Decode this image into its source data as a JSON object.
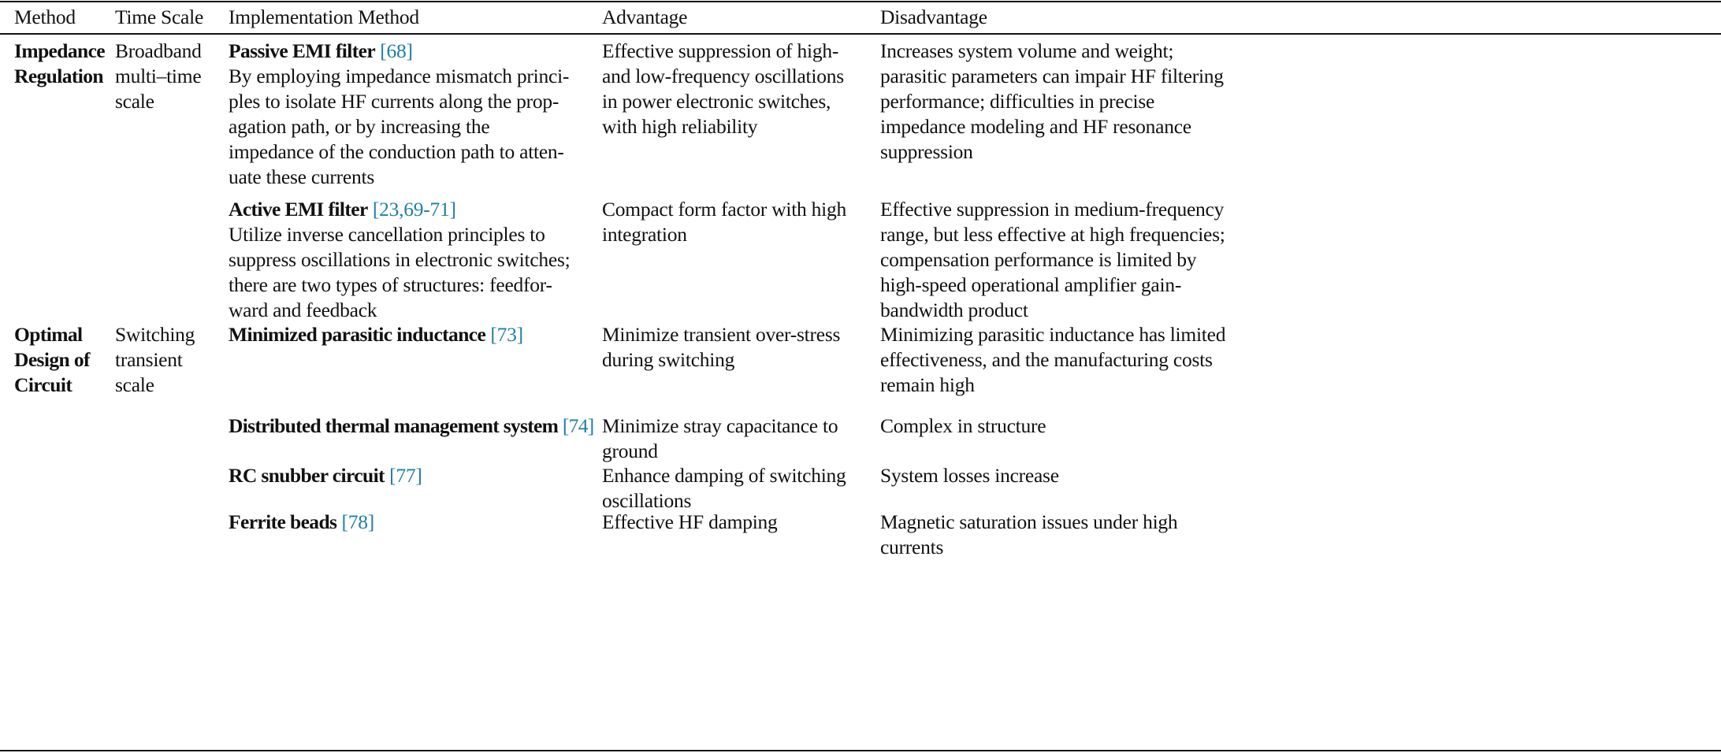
{
  "headers": [
    "Method",
    "Time Scale",
    "Implementation Method",
    "Advantage",
    "Disadvantage"
  ],
  "cite_color": "#1f7fa6",
  "rows": [
    {
      "method": [
        "Impedance",
        "Regulation"
      ],
      "time_scale": [
        "Broadband",
        "multi–time",
        "scale"
      ],
      "items": [
        {
          "title": "Passive EMI filter",
          "cite": "[68]",
          "desc": [
            "By employing impedance mismatch princi-",
            "ples to isolate HF currents along the prop-",
            "agation path, or by increasing the",
            "impedance of the conduction path to atten-",
            "uate these currents"
          ],
          "advantage": [
            "Effective suppression of high-",
            "and low-frequency oscillations",
            "in power electronic switches,",
            "with high reliability"
          ],
          "disadvantage": [
            "Increases system volume and weight;",
            "parasitic parameters can impair HF filtering",
            "performance; difficulties in precise",
            "impedance modeling and HF resonance",
            "suppression"
          ]
        },
        {
          "title": "Active EMI filter",
          "cite": "[23,69-71]",
          "desc": [
            "Utilize inverse cancellation principles to",
            "suppress oscillations in electronic switches;",
            "there are two types of structures: feedfor-",
            "ward and feedback"
          ],
          "advantage": [
            "Compact form factor with high",
            "integration"
          ],
          "disadvantage": [
            "Effective suppression in medium-frequency",
            "range, but less effective at high frequencies;",
            "compensation performance is limited by",
            "high-speed operational amplifier gain-",
            "bandwidth product"
          ]
        }
      ]
    },
    {
      "method": [
        "Optimal",
        "Design of",
        "Circuit"
      ],
      "time_scale": [
        "Switching",
        "transient",
        "scale"
      ],
      "items": [
        {
          "title": "Minimized parasitic inductance",
          "cite": "[73]",
          "desc": [],
          "advantage": [
            "Minimize transient over-stress",
            "during switching"
          ],
          "disadvantage": [
            "Minimizing parasitic inductance has limited",
            "effectiveness, and the manufacturing costs",
            "remain high"
          ]
        },
        {
          "title": "Distributed thermal management system",
          "cite": "[74]",
          "desc": [],
          "advantage": [
            "Minimize stray capacitance to",
            "ground"
          ],
          "disadvantage": [
            "Complex in structure"
          ]
        },
        {
          "title": "RC snubber circuit",
          "cite": "[77]",
          "desc": [],
          "advantage": [
            "Enhance damping of switching",
            "oscillations"
          ],
          "disadvantage": [
            "System losses increase"
          ]
        },
        {
          "title": "Ferrite beads",
          "cite": "[78]",
          "desc": [],
          "advantage": [
            "Effective HF damping"
          ],
          "disadvantage": [
            "Magnetic saturation issues under high",
            "currents"
          ]
        }
      ]
    }
  ]
}
